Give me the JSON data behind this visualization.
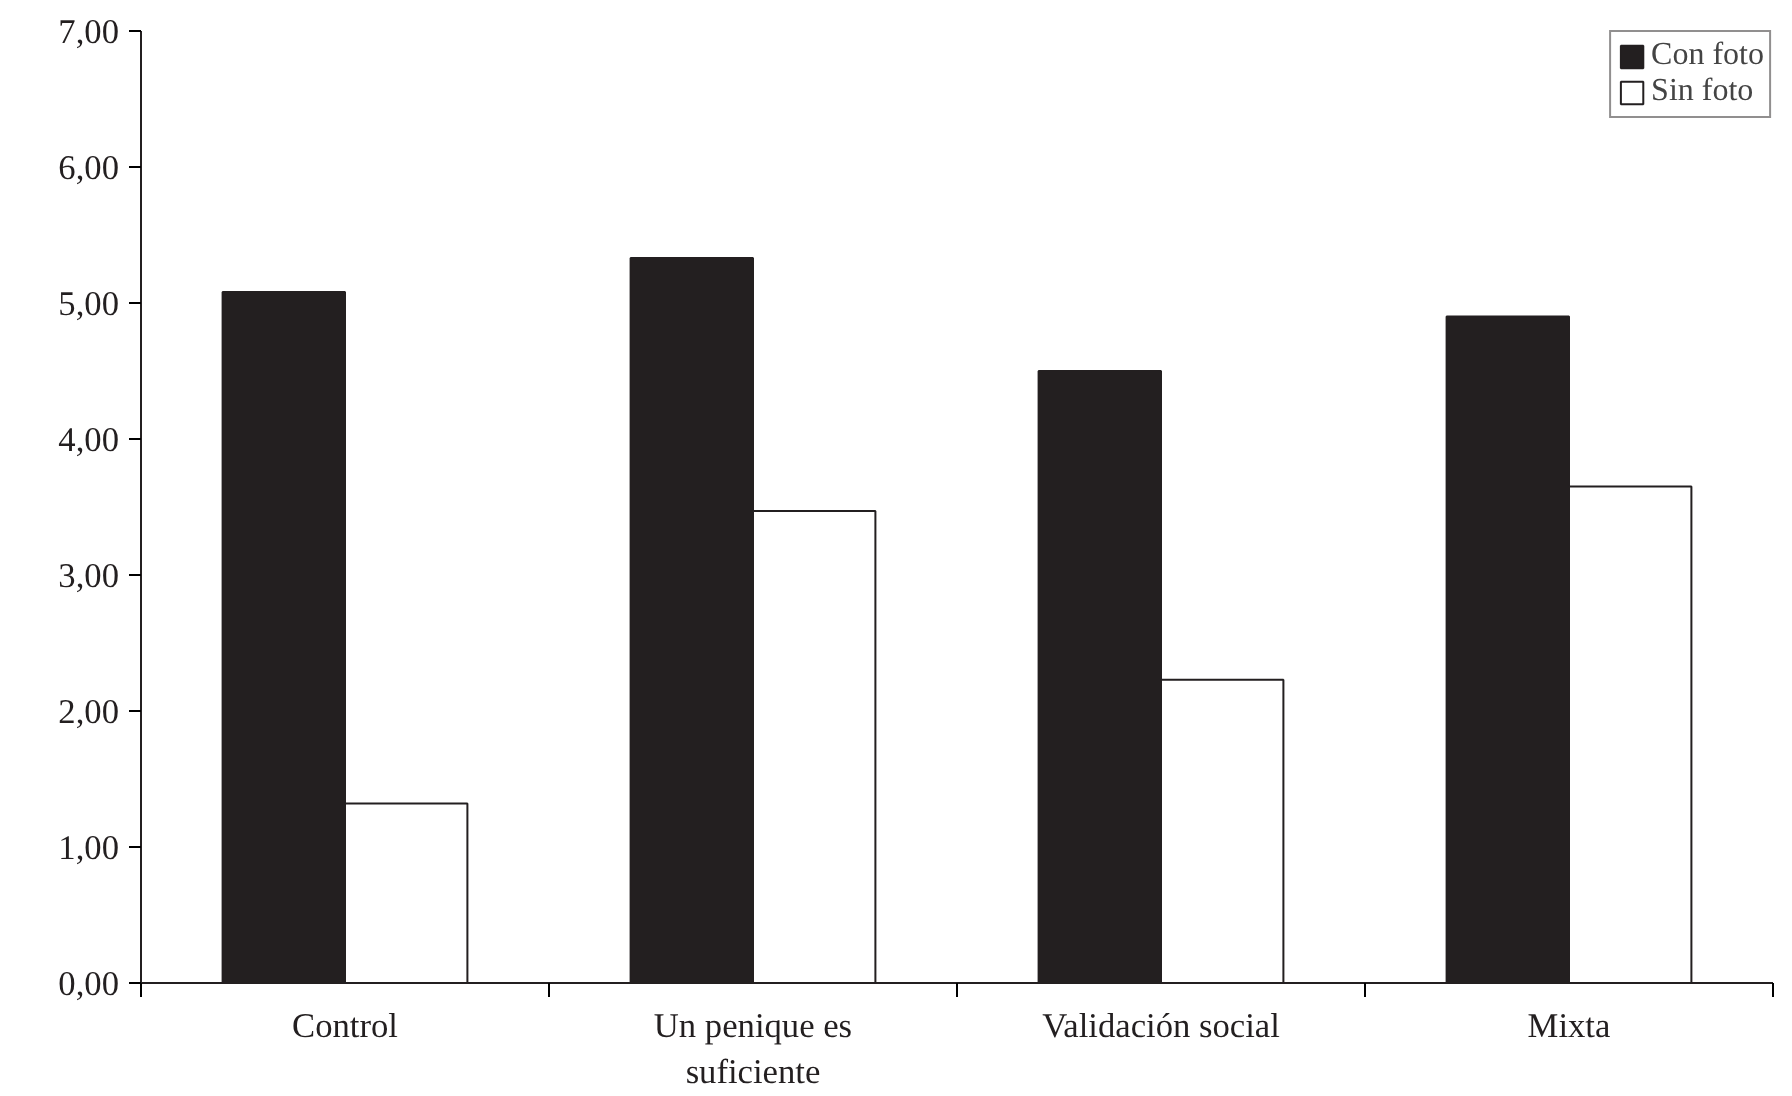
{
  "chart_data": {
    "type": "bar",
    "categories": [
      "Control",
      "Un penique es suficiente",
      "Validación social",
      "Mixta"
    ],
    "series": [
      {
        "name": "Con foto",
        "color": "#231f20",
        "values": [
          5.08,
          5.33,
          4.5,
          4.9
        ]
      },
      {
        "name": "Sin foto",
        "color": "#ffffff",
        "values": [
          1.32,
          3.47,
          2.23,
          3.65
        ]
      }
    ],
    "ylim": [
      0,
      7
    ],
    "yticks": [
      {
        "value": 0,
        "label": "0,00"
      },
      {
        "value": 1,
        "label": "1,00"
      },
      {
        "value": 2,
        "label": "2,00"
      },
      {
        "value": 3,
        "label": "3,00"
      },
      {
        "value": 4,
        "label": "4,00"
      },
      {
        "value": 5,
        "label": "5,00"
      },
      {
        "value": 6,
        "label": "6,00"
      },
      {
        "value": 7,
        "label": "7,00"
      }
    ],
    "grid": false,
    "legend": "top right"
  }
}
